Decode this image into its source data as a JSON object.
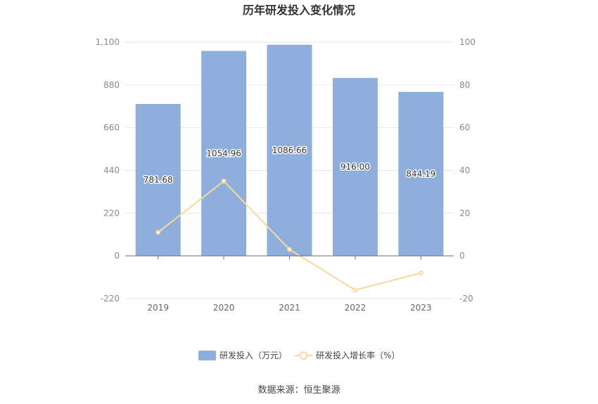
{
  "chart_data": {
    "type": "bar",
    "title": "历年研发投入变化情况",
    "categories": [
      "2019",
      "2020",
      "2021",
      "2022",
      "2023"
    ],
    "series": [
      {
        "name": "研发投入（万元）",
        "type": "bar",
        "axis": "left",
        "values": [
          781.68,
          1054.96,
          1086.66,
          916.0,
          844.19
        ],
        "labels": [
          "781.68",
          "1054.96",
          "1086.66",
          "916.00",
          "844.19"
        ],
        "color": "#8eaedb"
      },
      {
        "name": "研发投入增长率（%）",
        "type": "line",
        "axis": "right",
        "values": [
          11,
          35,
          3,
          -16,
          -8
        ],
        "color": "#f9d99a"
      }
    ],
    "y_left": {
      "min": -220,
      "max": 1100,
      "ticks": [
        "-220",
        "0",
        "220",
        "440",
        "660",
        "880",
        "1,100"
      ]
    },
    "y_right": {
      "min": -20,
      "max": 100,
      "ticks": [
        "-20",
        "0",
        "20",
        "40",
        "60",
        "80",
        "100"
      ]
    },
    "grid": true,
    "legend_position": "bottom"
  },
  "source": "数据来源：恒生聚源"
}
